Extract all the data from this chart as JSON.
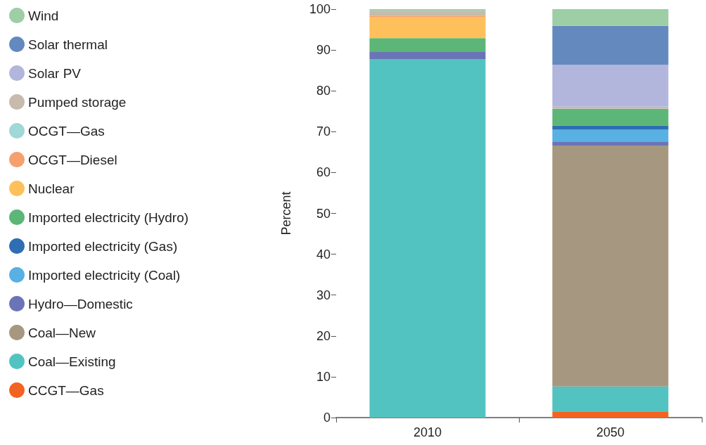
{
  "chart_data": {
    "type": "bar",
    "stacked": true,
    "ylabel": "Percent",
    "categories": [
      "2010",
      "2050"
    ],
    "ylim": [
      0,
      100
    ],
    "yticks": [
      0,
      10,
      20,
      30,
      40,
      50,
      60,
      70,
      80,
      90,
      100
    ],
    "grid": false,
    "legend": "left",
    "series": [
      {
        "name": "CCGT—Gas",
        "color": "#f26322",
        "values": [
          0,
          1.5
        ]
      },
      {
        "name": "Coal—Existing",
        "color": "#52c3c0",
        "values": [
          87.8,
          6.1
        ]
      },
      {
        "name": "Coal—New",
        "color": "#a69780",
        "values": [
          0,
          59.0
        ]
      },
      {
        "name": "Hydro—Domestic",
        "color": "#6b74b6",
        "values": [
          1.7,
          1.0
        ]
      },
      {
        "name": "Imported electricity (Coal)",
        "color": "#58b0e3",
        "values": [
          0,
          2.9
        ]
      },
      {
        "name": "Imported electricity (Gas)",
        "color": "#2f6db4",
        "values": [
          0,
          1.0
        ]
      },
      {
        "name": "Imported electricity (Hydro)",
        "color": "#5cb677",
        "values": [
          3.4,
          4.1
        ]
      },
      {
        "name": "Nuclear",
        "color": "#fec05a",
        "values": [
          5.2,
          0
        ]
      },
      {
        "name": "OCGT—Diesel",
        "color": "#f6a070",
        "values": [
          0.3,
          0
        ]
      },
      {
        "name": "OCGT—Gas",
        "color": "#9fd8d6",
        "values": [
          0,
          0
        ]
      },
      {
        "name": "Pumped storage",
        "color": "#c6bbac",
        "values": [
          1.2,
          0.5
        ]
      },
      {
        "name": "Solar PV",
        "color": "#b2b5dc",
        "values": [
          0,
          10.3
        ]
      },
      {
        "name": "Solar thermal",
        "color": "#6389bf",
        "values": [
          0,
          9.5
        ]
      },
      {
        "name": "Wind",
        "color": "#9dcea5",
        "values": [
          0.4,
          4.1
        ]
      }
    ]
  }
}
